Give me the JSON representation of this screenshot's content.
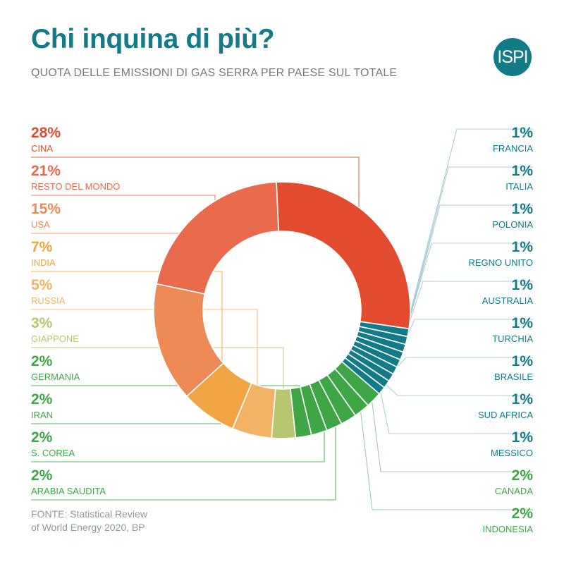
{
  "header": {
    "title": "Chi inquina di più?",
    "subtitle": "QUOTA DELLE EMISSIONI DI GAS SERRA PER PAESE SUL TOTALE",
    "logo_text": "ISPI"
  },
  "source": {
    "line1": "FONTE: Statistical Review",
    "line2": "of World Energy 2020, BP"
  },
  "colors": {
    "accent": "#137a87",
    "leader": "#9ec6cc"
  },
  "chart_data": {
    "type": "pie",
    "donut": true,
    "unit": "%",
    "title": "",
    "slices": [
      {
        "label": "CINA",
        "value": 28,
        "value_label": "28%",
        "color": "#e34b2f",
        "side": "left"
      },
      {
        "label": "FRANCIA",
        "value": 1,
        "value_label": "1%",
        "color": "#137a87",
        "side": "right"
      },
      {
        "label": "ITALIA",
        "value": 1,
        "value_label": "1%",
        "color": "#137a87",
        "side": "right"
      },
      {
        "label": "POLONIA",
        "value": 1,
        "value_label": "1%",
        "color": "#137a87",
        "side": "right"
      },
      {
        "label": "REGNO UNITO",
        "value": 1,
        "value_label": "1%",
        "color": "#137a87",
        "side": "right"
      },
      {
        "label": "AUSTRALIA",
        "value": 1,
        "value_label": "1%",
        "color": "#137a87",
        "side": "right"
      },
      {
        "label": "TURCHIA",
        "value": 1,
        "value_label": "1%",
        "color": "#137a87",
        "side": "right"
      },
      {
        "label": "BRASILE",
        "value": 1,
        "value_label": "1%",
        "color": "#137a87",
        "side": "right"
      },
      {
        "label": "SUD AFRICA",
        "value": 1,
        "value_label": "1%",
        "color": "#137a87",
        "side": "right"
      },
      {
        "label": "MESSICO",
        "value": 1,
        "value_label": "1%",
        "color": "#137a87",
        "side": "right"
      },
      {
        "label": "CANADA",
        "value": 2,
        "value_label": "2%",
        "color": "#3fa648",
        "side": "right"
      },
      {
        "label": "INDONESIA",
        "value": 2,
        "value_label": "2%",
        "color": "#3fa648",
        "side": "right"
      },
      {
        "label": "ARABIA SAUDITA",
        "value": 2,
        "value_label": "2%",
        "color": "#3fa648",
        "side": "left"
      },
      {
        "label": "S. COREA",
        "value": 2,
        "value_label": "2%",
        "color": "#3fa648",
        "side": "left"
      },
      {
        "label": "IRAN",
        "value": 2,
        "value_label": "2%",
        "color": "#3fa648",
        "side": "left"
      },
      {
        "label": "GERMANIA",
        "value": 2,
        "value_label": "2%",
        "color": "#3fa648",
        "side": "left"
      },
      {
        "label": "GIAPPONE",
        "value": 3,
        "value_label": "3%",
        "color": "#b9c670",
        "side": "left"
      },
      {
        "label": "RUSSIA",
        "value": 5,
        "value_label": "5%",
        "color": "#f2b366",
        "side": "left"
      },
      {
        "label": "INDIA",
        "value": 7,
        "value_label": "7%",
        "color": "#f0a443",
        "side": "left"
      },
      {
        "label": "USA",
        "value": 15,
        "value_label": "15%",
        "color": "#ee8a55",
        "side": "left"
      },
      {
        "label": "RESTO DEL MONDO",
        "value": 21,
        "value_label": "21%",
        "color": "#e96a4d",
        "side": "left"
      }
    ]
  }
}
